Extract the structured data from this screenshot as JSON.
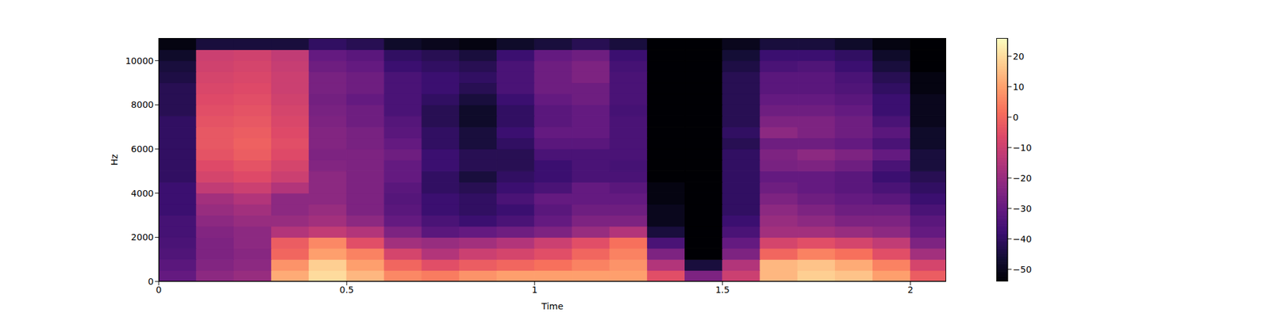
{
  "chart_data": {
    "type": "heatmap",
    "xlabel": "Time",
    "ylabel": "Hz",
    "xlim": [
      0,
      2.095
    ],
    "ylim": [
      0,
      11025
    ],
    "xticks": [
      0,
      0.5,
      1,
      1.5,
      2
    ],
    "yticks": [
      0,
      2000,
      4000,
      6000,
      8000,
      10000
    ],
    "x_bins": [
      0,
      0.1,
      0.2,
      0.3,
      0.4,
      0.5,
      0.6,
      0.7,
      0.8,
      0.9,
      1.0,
      1.1,
      1.2,
      1.3,
      1.4,
      1.5,
      1.6,
      1.7,
      1.8,
      1.9,
      2.0,
      2.095
    ],
    "y_bins": [
      0,
      500,
      1000,
      1500,
      2000,
      2500,
      3000,
      3500,
      4000,
      4500,
      5000,
      5500,
      6000,
      6500,
      7000,
      7500,
      8000,
      8500,
      9000,
      9500,
      10000,
      10500,
      11025
    ],
    "cells": [
      [
        -30,
        -22,
        -20,
        12,
        20,
        14,
        6,
        4,
        8,
        10,
        10,
        10,
        10,
        -5,
        -25,
        -10,
        14,
        18,
        16,
        10,
        -2
      ],
      [
        -32,
        -24,
        -22,
        8,
        18,
        10,
        0,
        -5,
        -2,
        0,
        2,
        5,
        8,
        -15,
        -45,
        -15,
        14,
        16,
        12,
        5,
        -8
      ],
      [
        -34,
        -25,
        -23,
        0,
        10,
        5,
        -8,
        -15,
        -10,
        -8,
        -5,
        0,
        5,
        -25,
        -54,
        -25,
        0,
        5,
        2,
        -5,
        -18
      ],
      [
        -35,
        -25,
        -22,
        -2,
        6,
        -5,
        -18,
        -20,
        -18,
        -15,
        -10,
        -5,
        2,
        -35,
        -54,
        -30,
        -8,
        -5,
        -8,
        -12,
        -25
      ],
      [
        -36,
        -24,
        -22,
        -15,
        -12,
        -15,
        -25,
        -32,
        -30,
        -28,
        -25,
        -20,
        -15,
        -45,
        -54,
        -35,
        -18,
        -18,
        -20,
        -22,
        -30
      ],
      [
        -36,
        -22,
        -20,
        -20,
        -18,
        -22,
        -30,
        -35,
        -38,
        -35,
        -30,
        -25,
        -25,
        -50,
        -54,
        -38,
        -20,
        -22,
        -25,
        -25,
        -32
      ],
      [
        -38,
        -20,
        -18,
        -22,
        -20,
        -25,
        -32,
        -38,
        -40,
        -38,
        -32,
        -28,
        -28,
        -50,
        -54,
        -40,
        -22,
        -25,
        -28,
        -28,
        -35
      ],
      [
        -38,
        -18,
        -15,
        -22,
        -22,
        -25,
        -33,
        -38,
        -40,
        -35,
        -30,
        -30,
        -30,
        -52,
        -54,
        -40,
        -25,
        -28,
        -30,
        -32,
        -38
      ],
      [
        -38,
        -12,
        -10,
        -15,
        -22,
        -25,
        -32,
        -40,
        -42,
        -38,
        -35,
        -30,
        -32,
        -52,
        -54,
        -40,
        -28,
        -30,
        -32,
        -35,
        -40
      ],
      [
        -40,
        -8,
        -6,
        -10,
        -22,
        -25,
        -30,
        -40,
        -45,
        -40,
        -38,
        -35,
        -35,
        -54,
        -54,
        -40,
        -30,
        -30,
        -32,
        -38,
        -42
      ],
      [
        -40,
        -6,
        -4,
        -8,
        -24,
        -25,
        -30,
        -38,
        -42,
        -42,
        -38,
        -35,
        -36,
        -54,
        -54,
        -40,
        -26,
        -25,
        -28,
        -35,
        -45
      ],
      [
        -40,
        -4,
        -2,
        -6,
        -25,
        -25,
        -28,
        -38,
        -42,
        -42,
        -35,
        -35,
        -35,
        -54,
        -54,
        -40,
        -25,
        -22,
        -25,
        -30,
        -45
      ],
      [
        -40,
        -3,
        -1,
        -5,
        -24,
        -26,
        -30,
        -40,
        -45,
        -40,
        -32,
        -32,
        -35,
        -54,
        -54,
        -42,
        -28,
        -28,
        -30,
        -35,
        -48
      ],
      [
        -40,
        -3,
        -2,
        -6,
        -24,
        -26,
        -32,
        -40,
        -45,
        -38,
        -30,
        -30,
        -35,
        -54,
        -54,
        -40,
        -22,
        -25,
        -28,
        -32,
        -48
      ],
      [
        -40,
        -4,
        -3,
        -7,
        -25,
        -28,
        -33,
        -42,
        -48,
        -40,
        -32,
        -30,
        -35,
        -54,
        -54,
        -42,
        -25,
        -25,
        -28,
        -35,
        -50
      ],
      [
        -42,
        -5,
        -4,
        -8,
        -26,
        -28,
        -35,
        -42,
        -48,
        -40,
        -32,
        -30,
        -36,
        -54,
        -54,
        -42,
        -28,
        -28,
        -30,
        -38,
        -50
      ],
      [
        -42,
        -6,
        -5,
        -9,
        -27,
        -30,
        -35,
        -40,
        -45,
        -38,
        -30,
        -28,
        -35,
        -54,
        -54,
        -42,
        -30,
        -30,
        -32,
        -38,
        -50
      ],
      [
        -42,
        -7,
        -6,
        -10,
        -26,
        -28,
        -35,
        -38,
        -42,
        -35,
        -28,
        -28,
        -35,
        -54,
        -54,
        -42,
        -32,
        -32,
        -34,
        -40,
        -52
      ],
      [
        -44,
        -8,
        -7,
        -10,
        -26,
        -28,
        -35,
        -38,
        -40,
        -35,
        -28,
        -25,
        -35,
        -54,
        -54,
        -42,
        -32,
        -32,
        -35,
        -42,
        -52
      ],
      [
        -45,
        -9,
        -8,
        -11,
        -28,
        -30,
        -38,
        -40,
        -42,
        -35,
        -28,
        -25,
        -36,
        -54,
        -54,
        -44,
        -35,
        -34,
        -38,
        -45,
        -54
      ],
      [
        -48,
        -10,
        -9,
        -12,
        -30,
        -32,
        -40,
        -42,
        -45,
        -38,
        -30,
        -28,
        -38,
        -54,
        -54,
        -46,
        -38,
        -38,
        -40,
        -48,
        -54
      ],
      [
        -52,
        -45,
        -45,
        -45,
        -40,
        -42,
        -48,
        -50,
        -52,
        -48,
        -45,
        -42,
        -45,
        -54,
        -54,
        -50,
        -45,
        -45,
        -48,
        -52,
        -54
      ]
    ],
    "colorbar": {
      "range": [
        -54,
        26
      ],
      "ticks": [
        {
          "value": -50,
          "label": "−50"
        },
        {
          "value": -40,
          "label": "−40"
        },
        {
          "value": -30,
          "label": "−30"
        },
        {
          "value": -20,
          "label": "−20"
        },
        {
          "value": -10,
          "label": "−10"
        },
        0,
        10,
        20
      ]
    }
  }
}
